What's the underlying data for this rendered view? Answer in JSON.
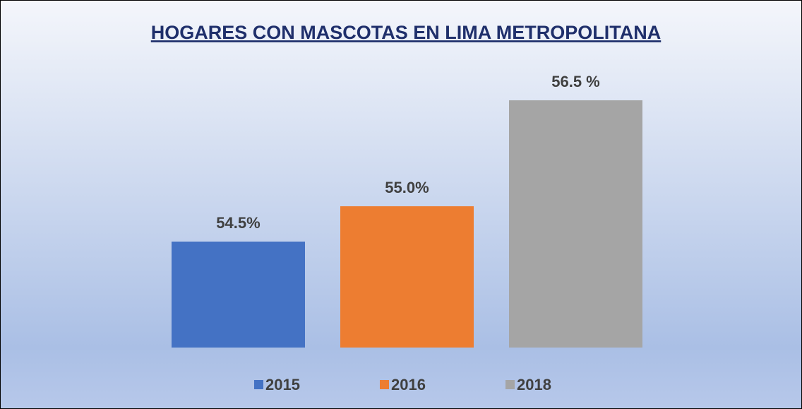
{
  "chart_data": {
    "type": "bar",
    "title": "HOGARES CON MASCOTAS EN LIMA METROPOLITANA",
    "series": [
      {
        "name": "2015",
        "color": "#4472c4",
        "values": [
          54.5
        ],
        "value_labels": [
          "54.5%"
        ]
      },
      {
        "name": "2016",
        "color": "#ed7d31",
        "values": [
          55.0
        ],
        "value_labels": [
          "55.0%"
        ]
      },
      {
        "name": "2018",
        "color": "#a5a5a5",
        "values": [
          56.5
        ],
        "value_labels": [
          "56.5 %"
        ]
      }
    ],
    "ylim": [
      53,
      57
    ],
    "grid": false,
    "legend": "bottom"
  }
}
